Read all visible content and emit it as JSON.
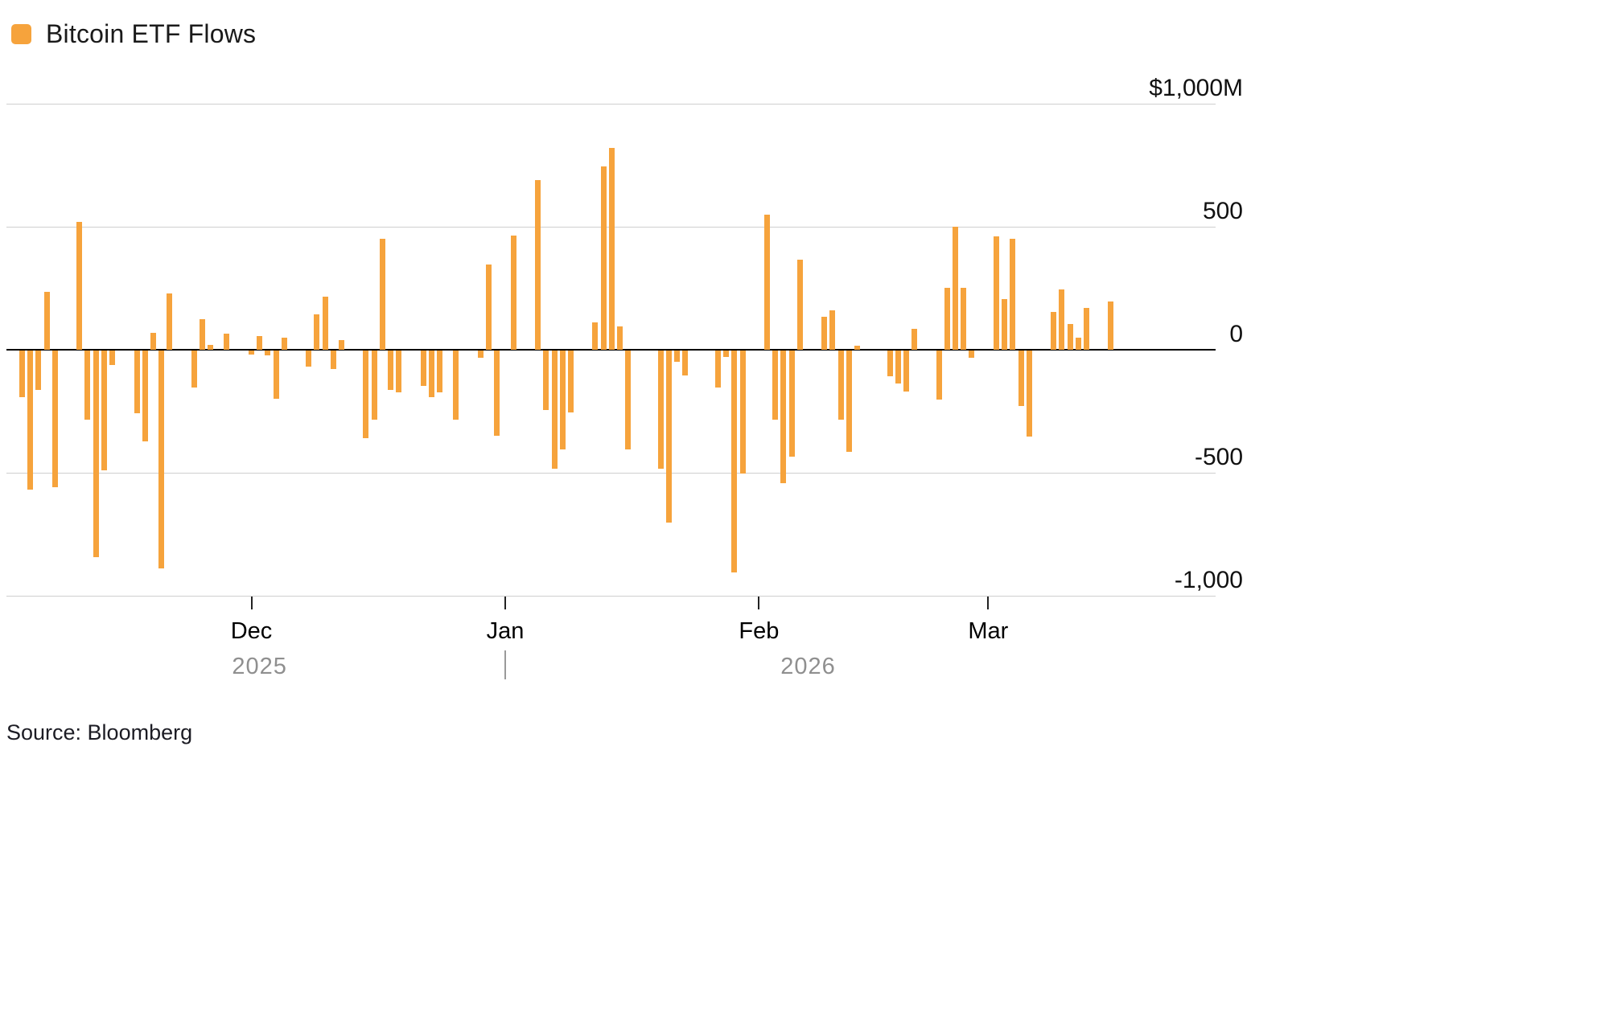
{
  "legend": {
    "label": "Bitcoin ETF Flows"
  },
  "source": {
    "text": "Source: Bloomberg"
  },
  "colors": {
    "bar": "#F6A33C",
    "grid": "#CFCFCF",
    "zero_line": "#000000",
    "axis_line": "#BDBDBD",
    "tick": "#222222",
    "month_text": "#000000",
    "year_text": "#8F8F8F",
    "divider": "#9A9A9A"
  },
  "y_axis": {
    "ticks": [
      {
        "value": 1000,
        "label": "$1,000M"
      },
      {
        "value": 500,
        "label": "500"
      },
      {
        "value": 0,
        "label": "0"
      },
      {
        "value": -500,
        "label": "-500"
      },
      {
        "value": -1000,
        "label": "-1,000"
      }
    ]
  },
  "x_axis": {
    "months": [
      {
        "label": "Dec",
        "date": "2025-12-01"
      },
      {
        "label": "Jan",
        "date": "2026-01-01"
      },
      {
        "label": "Feb",
        "date": "2026-02-01"
      },
      {
        "label": "Mar",
        "date": "2026-03-01"
      }
    ],
    "years": [
      {
        "label": "2025",
        "anchor_date": "2025-12-02"
      },
      {
        "label": "2026",
        "anchor_date": "2026-02-07"
      }
    ],
    "year_divider_date": "2026-01-01"
  },
  "chart_data": {
    "type": "bar",
    "title": "Bitcoin ETF Flows",
    "unit": "USD millions (daily net flow)",
    "ylabel": "$M",
    "ylim": [
      -1000,
      1000
    ],
    "grid": true,
    "legend_position": "top-left",
    "x": [
      "2025-11-03",
      "2025-11-04",
      "2025-11-05",
      "2025-11-06",
      "2025-11-07",
      "2025-11-10",
      "2025-11-11",
      "2025-11-12",
      "2025-11-13",
      "2025-11-14",
      "2025-11-17",
      "2025-11-18",
      "2025-11-19",
      "2025-11-20",
      "2025-11-21",
      "2025-11-24",
      "2025-11-25",
      "2025-11-26",
      "2025-11-28",
      "2025-12-01",
      "2025-12-02",
      "2025-12-03",
      "2025-12-04",
      "2025-12-05",
      "2025-12-08",
      "2025-12-09",
      "2025-12-10",
      "2025-12-11",
      "2025-12-12",
      "2025-12-15",
      "2025-12-16",
      "2025-12-17",
      "2025-12-18",
      "2025-12-19",
      "2025-12-22",
      "2025-12-23",
      "2025-12-24",
      "2025-12-26",
      "2025-12-29",
      "2025-12-30",
      "2025-12-31",
      "2026-01-02",
      "2026-01-05",
      "2026-01-06",
      "2026-01-07",
      "2026-01-08",
      "2026-01-09",
      "2026-01-12",
      "2026-01-13",
      "2026-01-14",
      "2026-01-15",
      "2026-01-16",
      "2026-01-20",
      "2026-01-21",
      "2026-01-22",
      "2026-01-23",
      "2026-01-27",
      "2026-01-28",
      "2026-01-29",
      "2026-01-30",
      "2026-02-02",
      "2026-02-03",
      "2026-02-04",
      "2026-02-05",
      "2026-02-06",
      "2026-02-09",
      "2026-02-10",
      "2026-02-11",
      "2026-02-12",
      "2026-02-13",
      "2026-02-17",
      "2026-02-18",
      "2026-02-19",
      "2026-02-20",
      "2026-02-23",
      "2026-02-24",
      "2026-02-25",
      "2026-02-26",
      "2026-02-27",
      "2026-03-02",
      "2026-03-03",
      "2026-03-04",
      "2026-03-05",
      "2026-03-06",
      "2026-03-09",
      "2026-03-10",
      "2026-03-11",
      "2026-03-12",
      "2026-03-13",
      "2026-03-16"
    ],
    "values": [
      -190,
      -565,
      -160,
      235,
      -555,
      520,
      -280,
      -840,
      -485,
      -60,
      -255,
      -370,
      70,
      -885,
      230,
      -150,
      125,
      20,
      65,
      -15,
      55,
      -20,
      -195,
      50,
      -65,
      145,
      215,
      -75,
      40,
      -355,
      -280,
      450,
      -160,
      -170,
      -145,
      -190,
      -170,
      -280,
      -30,
      345,
      -345,
      465,
      690,
      -240,
      -480,
      -400,
      -250,
      110,
      745,
      820,
      95,
      -400,
      -480,
      -700,
      -45,
      -100,
      -150,
      -25,
      -900,
      -500,
      550,
      -280,
      -540,
      -430,
      365,
      135,
      160,
      -280,
      -410,
      15,
      -105,
      -135,
      -165,
      85,
      -200,
      250,
      500,
      250,
      -30,
      460,
      205,
      450,
      -225,
      -350,
      155,
      245,
      105,
      50,
      170,
      195
    ]
  }
}
